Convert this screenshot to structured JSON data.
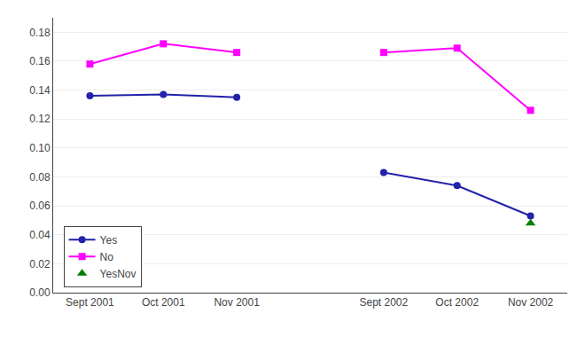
{
  "chart_data": {
    "type": "line",
    "categories": [
      "Sept 2001",
      "Oct 2001",
      "Nov 2001",
      null,
      "Sept 2002",
      "Oct 2002",
      "Nov 2002"
    ],
    "series": [
      {
        "name": "Yes",
        "color": "#2222AA",
        "marker": "circle",
        "line_style": "solid",
        "values": [
          0.136,
          0.137,
          0.135,
          null,
          0.083,
          0.074,
          0.053
        ]
      },
      {
        "name": "No",
        "color": "#FF00FF",
        "marker": "square",
        "line_style": "solid",
        "values": [
          0.158,
          0.172,
          0.166,
          null,
          0.166,
          0.169,
          0.126
        ]
      },
      {
        "name": "YesNov",
        "color": "#008000",
        "marker": "triangle",
        "line_style": "none",
        "values": [
          null,
          null,
          null,
          null,
          null,
          null,
          0.048
        ]
      }
    ],
    "ylim": [
      0.0,
      0.19
    ],
    "yticks": [
      {
        "value": 0,
        "label": "0.00"
      },
      0.02,
      0.04,
      0.06,
      0.08,
      {
        "value": 0.1,
        "label": "0.10"
      },
      0.12,
      0.14,
      0.16,
      0.18
    ],
    "grid": true,
    "legend": "lower left"
  }
}
